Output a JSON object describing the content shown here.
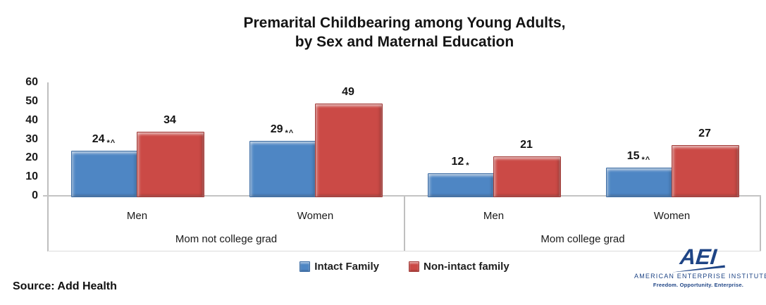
{
  "page": {
    "source_note": "Source: Add Health"
  },
  "chart_data": {
    "type": "bar",
    "title": "Premarital Childbearing among Young Adults, by Sex and Maternal Education",
    "title_lines": [
      "Premarital Childbearing among Young Adults,",
      "by Sex and Maternal Education"
    ],
    "xlabel": "",
    "ylabel": "",
    "ylim": [
      0,
      60
    ],
    "yticks": [
      0,
      10,
      20,
      30,
      40,
      50,
      60
    ],
    "grid": false,
    "legend_position": "bottom-center",
    "categories": [
      "Men",
      "Women",
      "Men",
      "Women"
    ],
    "category_groups": [
      0,
      0,
      1,
      1
    ],
    "group_labels": [
      "Mom not college grad",
      "Mom college grad"
    ],
    "series": [
      {
        "name": "Intact Family",
        "color": "#4E86C4",
        "border_color": "#3C6CA4",
        "values": [
          24,
          29,
          12,
          15
        ],
        "significance_markers": [
          "*^",
          "*^",
          "*",
          "*^"
        ]
      },
      {
        "name": "Non-intact family",
        "color": "#CB4A46",
        "border_color": "#A33B38",
        "values": [
          34,
          49,
          21,
          27
        ],
        "significance_markers": [
          "",
          "",
          "",
          ""
        ]
      }
    ]
  },
  "logo": {
    "wordmark": "AEI",
    "name": "AMERICAN ENTERPRISE INSTITUTE",
    "tagline": "Freedom. Opportunity. Enterprise.",
    "color": "#1E4485"
  }
}
